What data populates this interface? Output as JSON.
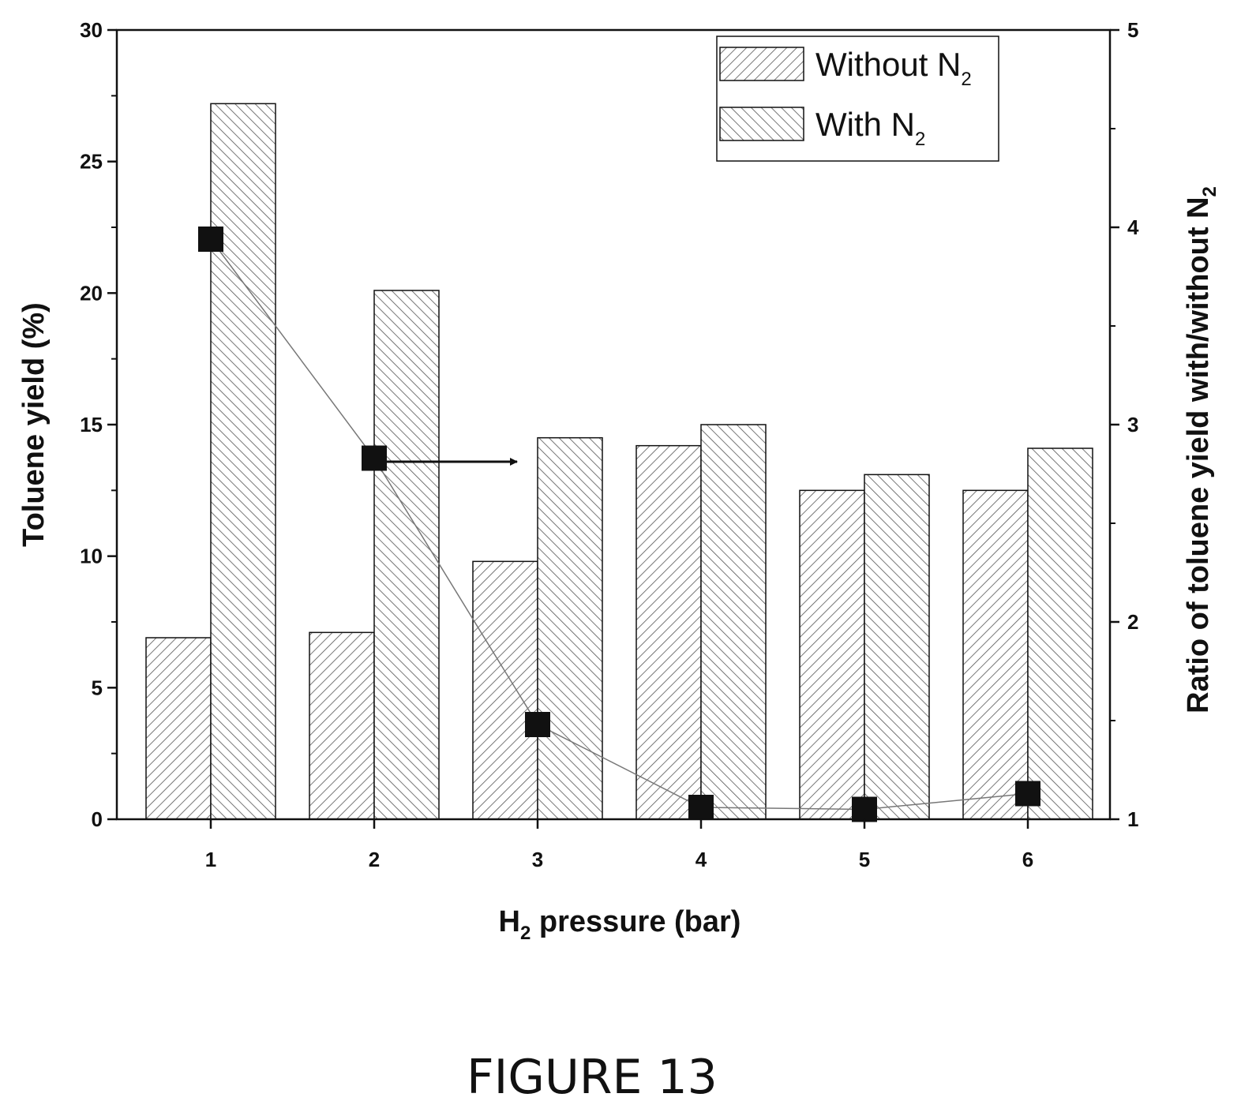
{
  "figure_caption": "FIGURE 13",
  "chart_data": {
    "type": "bar",
    "categories": [
      "1",
      "2",
      "3",
      "4",
      "5",
      "6"
    ],
    "xlabel": {
      "prefix": "H",
      "subscript": "2",
      "suffix": " pressure (bar)"
    },
    "ylabel": "Toluene yield (%)",
    "y2label": {
      "text": "Ratio of toluene yield with/without N",
      "subscript": "2"
    },
    "ylim": [
      0,
      30
    ],
    "y_ticks": [
      "0",
      "5",
      "10",
      "15",
      "20",
      "25",
      "30"
    ],
    "y2lim": [
      1,
      5
    ],
    "y2_ticks": [
      "1",
      "2",
      "3",
      "4",
      "5"
    ],
    "legend_position": "top-right",
    "series": [
      {
        "name": "Without N",
        "name_subscript": "2",
        "values": [
          6.9,
          7.1,
          9.8,
          14.2,
          12.5,
          12.5
        ],
        "pattern": "hatch-forward"
      },
      {
        "name": "With N",
        "name_subscript": "2",
        "values": [
          27.2,
          20.1,
          14.5,
          15.0,
          13.1,
          14.1
        ],
        "pattern": "hatch-backward"
      }
    ],
    "ratio_series": {
      "type": "line",
      "axis": "right",
      "marker": "square",
      "values": [
        3.94,
        2.83,
        1.48,
        1.06,
        1.05,
        1.13
      ]
    },
    "annotation": "arrow pointing to right axis"
  }
}
